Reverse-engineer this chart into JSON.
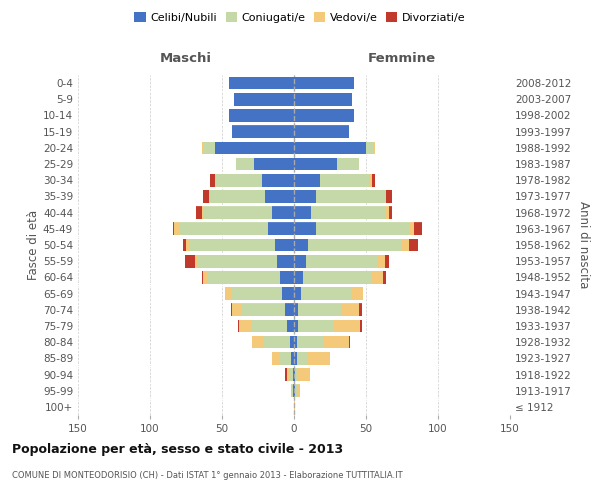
{
  "age_groups": [
    "100+",
    "95-99",
    "90-94",
    "85-89",
    "80-84",
    "75-79",
    "70-74",
    "65-69",
    "60-64",
    "55-59",
    "50-54",
    "45-49",
    "40-44",
    "35-39",
    "30-34",
    "25-29",
    "20-24",
    "15-19",
    "10-14",
    "5-9",
    "0-4"
  ],
  "birth_years": [
    "≤ 1912",
    "1913-1917",
    "1918-1922",
    "1923-1927",
    "1928-1932",
    "1933-1937",
    "1938-1942",
    "1943-1947",
    "1948-1952",
    "1953-1957",
    "1958-1962",
    "1963-1967",
    "1968-1972",
    "1973-1977",
    "1978-1982",
    "1983-1987",
    "1988-1992",
    "1993-1997",
    "1998-2002",
    "2003-2007",
    "2008-2012"
  ],
  "male_celibi": [
    0,
    1,
    1,
    2,
    3,
    5,
    6,
    8,
    10,
    12,
    13,
    18,
    15,
    20,
    22,
    28,
    55,
    43,
    45,
    42,
    45
  ],
  "male_coniugati": [
    0,
    1,
    2,
    8,
    18,
    25,
    30,
    35,
    50,
    55,
    60,
    62,
    48,
    38,
    32,
    12,
    8,
    0,
    0,
    0,
    0
  ],
  "male_vedovi": [
    0,
    0,
    2,
    5,
    8,
    8,
    7,
    5,
    3,
    2,
    2,
    3,
    1,
    1,
    1,
    0,
    1,
    0,
    0,
    0,
    0
  ],
  "male_divorziati": [
    0,
    0,
    1,
    0,
    0,
    1,
    1,
    0,
    1,
    7,
    2,
    1,
    4,
    4,
    3,
    0,
    0,
    0,
    0,
    0,
    0
  ],
  "female_celibi": [
    0,
    1,
    1,
    2,
    2,
    3,
    3,
    5,
    6,
    8,
    10,
    15,
    12,
    15,
    18,
    30,
    50,
    38,
    42,
    40,
    42
  ],
  "female_coniugati": [
    0,
    1,
    2,
    8,
    18,
    25,
    30,
    35,
    48,
    50,
    65,
    65,
    52,
    48,
    35,
    15,
    5,
    0,
    0,
    0,
    0
  ],
  "female_vedovi": [
    1,
    2,
    8,
    15,
    18,
    18,
    12,
    8,
    8,
    5,
    5,
    3,
    2,
    1,
    1,
    0,
    1,
    0,
    0,
    0,
    0
  ],
  "female_divorziati": [
    0,
    0,
    0,
    0,
    1,
    1,
    2,
    0,
    2,
    3,
    6,
    6,
    2,
    4,
    2,
    0,
    0,
    0,
    0,
    0,
    0
  ],
  "colors": {
    "celibi": "#4472C4",
    "coniugati": "#C5D9A8",
    "vedovi": "#F5C97A",
    "divorziati": "#C0392B"
  },
  "title": "Popolazione per età, sesso e stato civile - 2013",
  "subtitle": "COMUNE DI MONTEODORISIO (CH) - Dati ISTAT 1° gennaio 2013 - Elaborazione TUTTITALIA.IT",
  "xlabel_left": "Maschi",
  "xlabel_right": "Femmine",
  "ylabel_left": "Fasce di età",
  "ylabel_right": "Anni di nascita",
  "xlim": 150,
  "bg_color": "#ffffff",
  "grid_color": "#cccccc",
  "legend_labels": [
    "Celibi/Nubili",
    "Coniugati/e",
    "Vedovi/e",
    "Divorziati/e"
  ]
}
